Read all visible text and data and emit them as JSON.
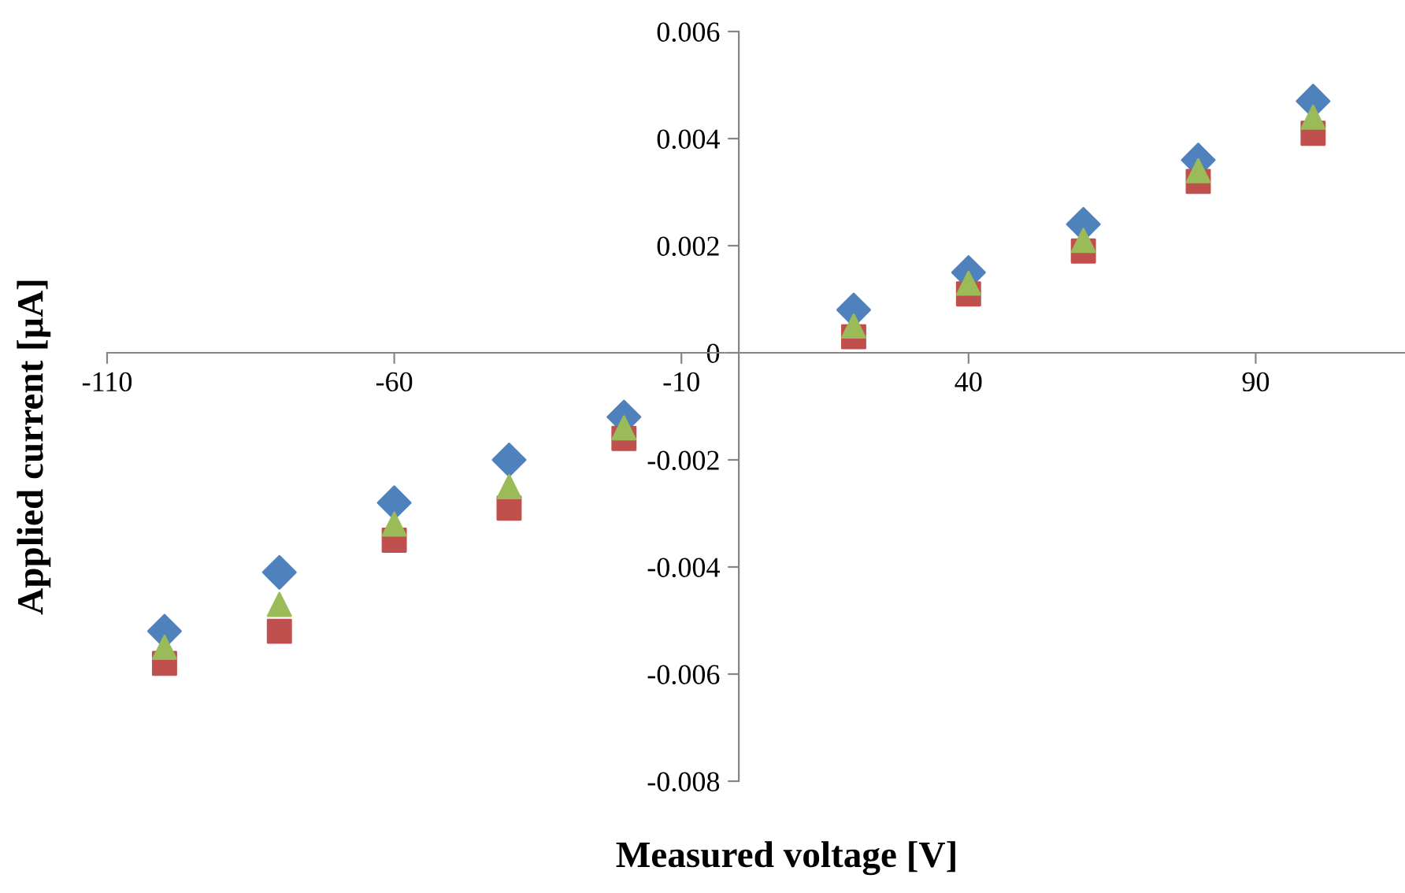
{
  "chart_data": {
    "type": "scatter",
    "xlabel": "Measured voltage [V]",
    "ylabel": "Applied current [µA]",
    "x": [
      -100,
      -80,
      -60,
      -40,
      -20,
      20,
      40,
      60,
      80,
      100
    ],
    "xlim": [
      -110,
      116
    ],
    "xticks": [
      -110,
      -60,
      -10,
      40,
      90
    ],
    "ylim": [
      -0.008,
      0.006
    ],
    "yticks": [
      {
        "value": -0.008,
        "label": "-0.008"
      },
      {
        "value": -0.006,
        "label": "-0.006"
      },
      {
        "value": -0.004,
        "label": "-0.004"
      },
      {
        "value": -0.002,
        "label": "-0.002"
      },
      {
        "value": 0,
        "label": "0"
      },
      {
        "value": 0.002,
        "label": "0.002"
      },
      {
        "value": 0.004,
        "label": "0.004"
      },
      {
        "value": 0.006,
        "label": "0.006"
      }
    ],
    "grid": false,
    "legend": false,
    "series": [
      {
        "color": "#4f81bd",
        "marker": "diamond",
        "values": [
          -0.0052,
          -0.0041,
          -0.0028,
          -0.002,
          -0.0012,
          0.0008,
          0.0015,
          0.0024,
          0.0036,
          0.0047
        ]
      },
      {
        "color": "#c0504d",
        "marker": "square",
        "values": [
          -0.0058,
          -0.0052,
          -0.0035,
          -0.0029,
          -0.0016,
          0.0003,
          0.0011,
          0.0019,
          0.0032,
          0.0041
        ]
      },
      {
        "color": "#9bbb59",
        "marker": "triangle",
        "values": [
          -0.0055,
          -0.0047,
          -0.0032,
          -0.0025,
          -0.0014,
          0.0005,
          0.0013,
          0.0021,
          0.0034,
          0.0044
        ]
      }
    ]
  }
}
